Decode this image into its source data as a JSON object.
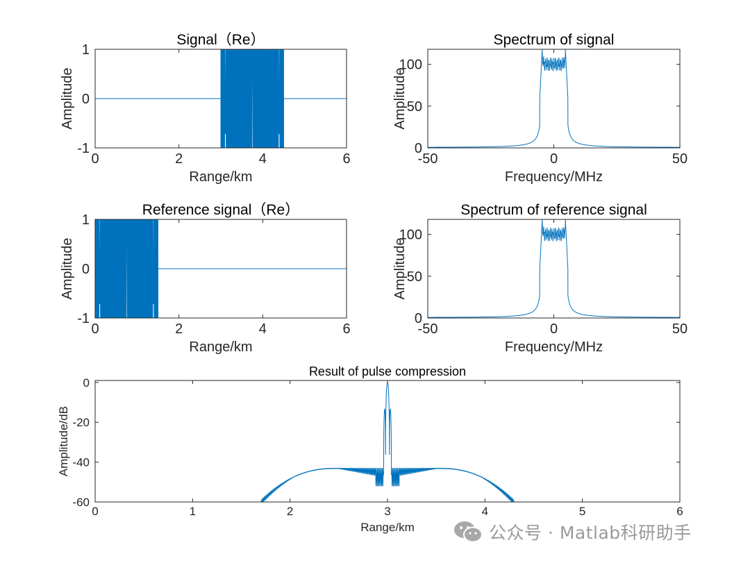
{
  "chart_data": [
    {
      "id": "signal",
      "type": "line",
      "title": "Signal（Re）",
      "xlabel": "Range/km",
      "ylabel": "Amplitude",
      "xlim": [
        0,
        6
      ],
      "ylim": [
        -1,
        1
      ],
      "xticks": [
        "0",
        "2",
        "4",
        "6"
      ],
      "yticks": [
        "-1",
        "0",
        "1"
      ],
      "chirp": {
        "start_km": 3.0,
        "end_km": 4.5
      },
      "grid": false
    },
    {
      "id": "spectrum_signal",
      "type": "line",
      "title": "Spectrum of signal",
      "xlabel": "Frequency/MHz",
      "ylabel": "Amplitude",
      "xlim": [
        -50,
        50
      ],
      "ylim": [
        0,
        118
      ],
      "xticks": [
        "-50",
        "0",
        "50"
      ],
      "yticks": [
        "0",
        "50",
        "100"
      ],
      "band": {
        "low_mhz": -5,
        "high_mhz": 5,
        "plateau": 100,
        "edge_peak": 118
      },
      "grid": false
    },
    {
      "id": "reference",
      "type": "line",
      "title": "Reference signal（Re）",
      "xlabel": "Range/km",
      "ylabel": "Amplitude",
      "xlim": [
        0,
        6
      ],
      "ylim": [
        -1,
        1
      ],
      "xticks": [
        "0",
        "2",
        "4",
        "6"
      ],
      "yticks": [
        "-1",
        "0",
        "1"
      ],
      "chirp": {
        "start_km": 0.0,
        "end_km": 1.5
      },
      "grid": false
    },
    {
      "id": "spectrum_reference",
      "type": "line",
      "title": "Spectrum of reference signal",
      "xlabel": "Frequency/MHz",
      "ylabel": "Amplitude",
      "xlim": [
        -50,
        50
      ],
      "ylim": [
        0,
        118
      ],
      "xticks": [
        "-50",
        "0",
        "50"
      ],
      "yticks": [
        "0",
        "50",
        "100"
      ],
      "band": {
        "low_mhz": -5,
        "high_mhz": 5,
        "plateau": 100,
        "edge_peak": 118
      },
      "grid": false
    },
    {
      "id": "compression",
      "type": "line",
      "title": "Result of pulse compression",
      "xlabel": "Range/km",
      "ylabel": "Amplitude/dB",
      "xlim": [
        0,
        6
      ],
      "ylim": [
        -60,
        1
      ],
      "xticks": [
        "0",
        "1",
        "2",
        "3",
        "4",
        "5",
        "6"
      ],
      "yticks": [
        "-60",
        "-40",
        "-20",
        "0"
      ],
      "peak": {
        "x_km": 3.0,
        "y_db": 0
      },
      "sidelobe_level_db": -43,
      "grid": false
    }
  ],
  "colors": {
    "line": "#0072BD",
    "axes": "#262626",
    "watermark": "#9a9a9a"
  },
  "watermark": {
    "icon": "wechat-icon",
    "text": "公众号 · Matlab科研助手"
  }
}
